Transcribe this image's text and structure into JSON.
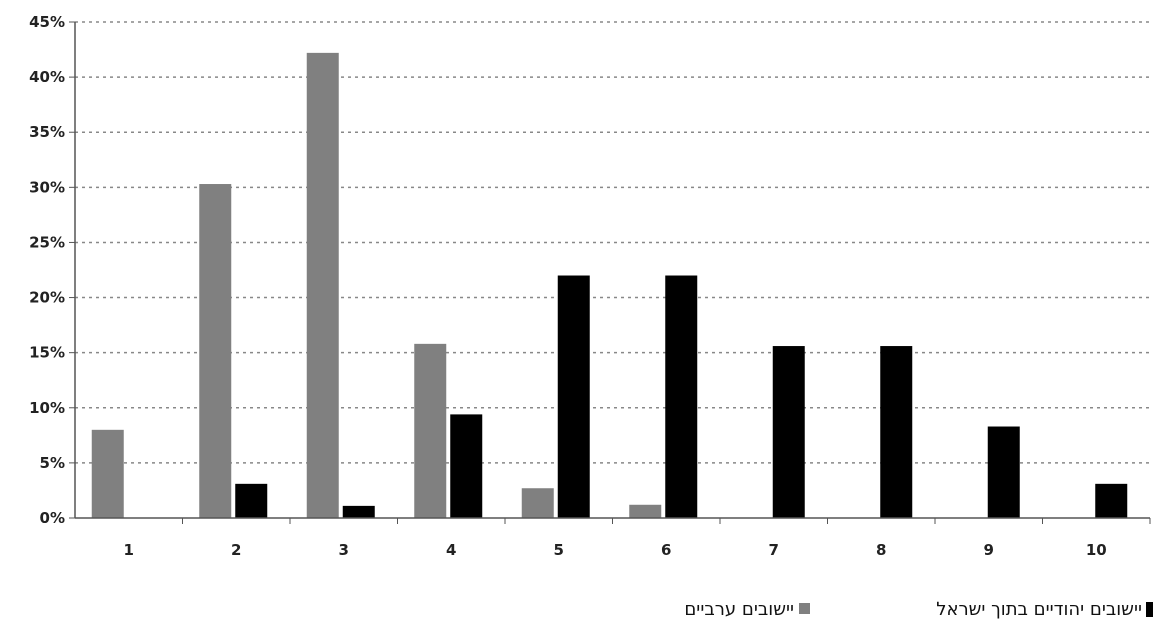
{
  "chart_data": {
    "type": "bar",
    "title": "",
    "xlabel": "",
    "ylabel": "",
    "categories": [
      "1",
      "2",
      "3",
      "4",
      "5",
      "6",
      "7",
      "8",
      "9",
      "10"
    ],
    "y_ticks": [
      "0%",
      "5%",
      "10%",
      "15%",
      "20%",
      "25%",
      "30%",
      "35%",
      "40%",
      "45%"
    ],
    "ylim": [
      0,
      45
    ],
    "grid": true,
    "legend_position": "bottom",
    "series": [
      {
        "name": "יישובים ערביים",
        "color": "#808080",
        "values": [
          8.0,
          30.3,
          42.2,
          15.8,
          2.7,
          1.2,
          0,
          0,
          0,
          0
        ]
      },
      {
        "name": "יישובים יהודיים בתוך ישראל",
        "color": "#000000",
        "values": [
          0,
          3.1,
          1.1,
          9.4,
          22.0,
          22.0,
          15.6,
          15.6,
          8.3,
          3.1
        ]
      }
    ]
  }
}
